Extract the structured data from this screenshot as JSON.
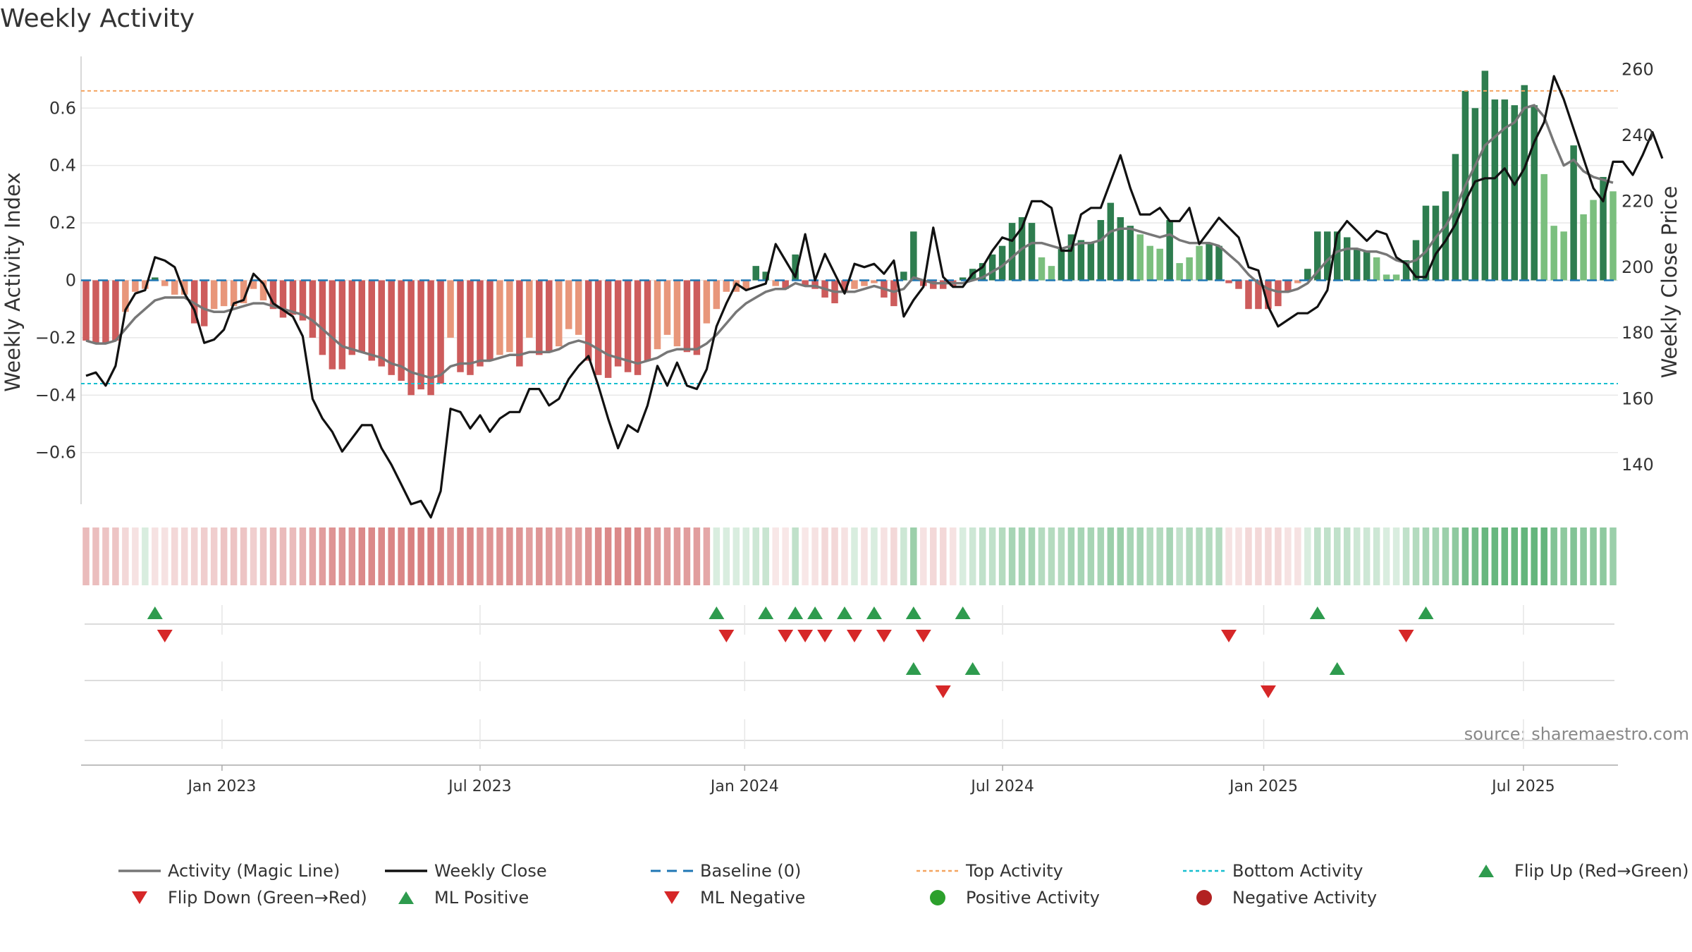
{
  "chart_data": {
    "type": "bar",
    "title": "Weekly Activity",
    "ylabel_left": "Weekly Activity Index",
    "ylabel_right": "Weekly Close Price",
    "source": "source: sharemaestro.com",
    "left_axis": {
      "ylim": [
        -0.78,
        0.78
      ],
      "ticks": [
        0.6,
        0.4,
        0.2,
        0,
        -0.2,
        -0.4,
        -0.6
      ],
      "tick_labels": [
        "0.6",
        "0.4",
        "0.2",
        "0",
        "−0.2",
        "−0.4",
        "−0.6"
      ]
    },
    "right_axis": {
      "ylim": [
        128,
        264
      ],
      "ticks": [
        260,
        240,
        220,
        200,
        180,
        160,
        140
      ],
      "tick_labels": [
        "260",
        "240",
        "220",
        "200",
        "180",
        "160",
        "140"
      ]
    },
    "reference_lines": {
      "baseline": 0,
      "top_activity": 0.66,
      "bottom_activity": -0.36
    },
    "x_ticks": [
      "Jan 2023",
      "Jul 2023",
      "Jan 2024",
      "Jul 2024",
      "Jan 2025",
      "Jul 2025"
    ],
    "activity": [
      -0.21,
      -0.22,
      -0.22,
      -0.21,
      -0.11,
      -0.04,
      -0.03,
      0.01,
      -0.02,
      -0.05,
      -0.05,
      -0.15,
      -0.16,
      -0.1,
      -0.09,
      -0.09,
      -0.08,
      -0.03,
      -0.07,
      -0.1,
      -0.13,
      -0.12,
      -0.14,
      -0.2,
      -0.26,
      -0.31,
      -0.31,
      -0.26,
      -0.25,
      -0.28,
      -0.3,
      -0.33,
      -0.35,
      -0.4,
      -0.38,
      -0.4,
      -0.36,
      -0.2,
      -0.32,
      -0.33,
      -0.3,
      -0.28,
      -0.26,
      -0.25,
      -0.3,
      -0.2,
      -0.26,
      -0.25,
      -0.23,
      -0.17,
      -0.19,
      -0.28,
      -0.33,
      -0.34,
      -0.3,
      -0.32,
      -0.33,
      -0.28,
      -0.24,
      -0.19,
      -0.23,
      -0.25,
      -0.26,
      -0.15,
      -0.1,
      -0.04,
      -0.04,
      -0.03,
      0.05,
      0.03,
      -0.02,
      -0.03,
      0.09,
      -0.02,
      -0.03,
      -0.06,
      -0.08,
      -0.04,
      -0.03,
      -0.02,
      -0.01,
      -0.06,
      -0.09,
      0.03,
      0.17,
      -0.02,
      -0.03,
      -0.03,
      -0.02,
      0.01,
      0.04,
      0.06,
      0.09,
      0.12,
      0.2,
      0.22,
      0.2,
      0.08,
      0.05,
      0.11,
      0.16,
      0.14,
      0.13,
      0.21,
      0.27,
      0.22,
      0.19,
      0.16,
      0.12,
      0.11,
      0.21,
      0.06,
      0.08,
      0.12,
      0.13,
      0.12,
      -0.01,
      -0.03,
      -0.1,
      -0.1,
      -0.1,
      -0.09,
      -0.04,
      -0.01,
      0.04,
      0.17,
      0.17,
      0.17,
      0.15,
      0.11,
      0.1,
      0.08,
      0.02,
      0.02,
      0.07,
      0.14,
      0.26,
      0.26,
      0.31,
      0.44,
      0.66,
      0.6,
      0.73,
      0.63,
      0.63,
      0.61,
      0.68,
      0.61,
      0.37,
      0.19,
      0.17,
      0.47,
      0.23,
      0.28,
      0.36,
      0.31
    ],
    "magic_line": [
      -0.21,
      -0.22,
      -0.22,
      -0.21,
      -0.17,
      -0.13,
      -0.1,
      -0.07,
      -0.06,
      -0.06,
      -0.06,
      -0.08,
      -0.1,
      -0.11,
      -0.11,
      -0.1,
      -0.09,
      -0.08,
      -0.08,
      -0.09,
      -0.1,
      -0.11,
      -0.12,
      -0.14,
      -0.17,
      -0.2,
      -0.23,
      -0.24,
      -0.25,
      -0.26,
      -0.27,
      -0.29,
      -0.3,
      -0.32,
      -0.33,
      -0.34,
      -0.33,
      -0.3,
      -0.29,
      -0.29,
      -0.28,
      -0.28,
      -0.27,
      -0.26,
      -0.26,
      -0.25,
      -0.25,
      -0.25,
      -0.24,
      -0.22,
      -0.21,
      -0.22,
      -0.24,
      -0.26,
      -0.27,
      -0.28,
      -0.29,
      -0.28,
      -0.27,
      -0.25,
      -0.24,
      -0.24,
      -0.24,
      -0.22,
      -0.19,
      -0.15,
      -0.11,
      -0.08,
      -0.06,
      -0.04,
      -0.03,
      -0.03,
      -0.01,
      -0.02,
      -0.02,
      -0.03,
      -0.04,
      -0.04,
      -0.04,
      -0.03,
      -0.02,
      -0.03,
      -0.04,
      -0.03,
      0.01,
      0.0,
      -0.01,
      -0.01,
      -0.01,
      -0.01,
      0.0,
      0.01,
      0.03,
      0.05,
      0.08,
      0.11,
      0.13,
      0.13,
      0.12,
      0.11,
      0.12,
      0.13,
      0.13,
      0.14,
      0.17,
      0.18,
      0.18,
      0.17,
      0.16,
      0.15,
      0.16,
      0.14,
      0.13,
      0.13,
      0.13,
      0.12,
      0.09,
      0.06,
      0.02,
      -0.01,
      -0.03,
      -0.04,
      -0.04,
      -0.03,
      -0.01,
      0.03,
      0.07,
      0.1,
      0.11,
      0.11,
      0.1,
      0.1,
      0.09,
      0.07,
      0.06,
      0.07,
      0.1,
      0.15,
      0.19,
      0.25,
      0.33,
      0.4,
      0.47,
      0.5,
      0.53,
      0.55,
      0.6,
      0.61,
      0.57,
      0.48,
      0.4,
      0.42,
      0.38,
      0.36,
      0.35,
      0.34
    ],
    "weekly_close": [
      167,
      168,
      164,
      170,
      187,
      192,
      193,
      203,
      202,
      200,
      192,
      187,
      177,
      178,
      181,
      189,
      190,
      198,
      195,
      189,
      187,
      185,
      179,
      160,
      154,
      150,
      144,
      148,
      152,
      152,
      145,
      140,
      134,
      128,
      129,
      124,
      132,
      157,
      156,
      151,
      155,
      150,
      154,
      156,
      156,
      163,
      163,
      158,
      160,
      166,
      170,
      173,
      164,
      154,
      145,
      152,
      150,
      158,
      170,
      164,
      171,
      164,
      163,
      169,
      182,
      189,
      195,
      193,
      194,
      195,
      207,
      202,
      197,
      210,
      196,
      204,
      198,
      192,
      201,
      200,
      201,
      198,
      202,
      185,
      190,
      194,
      212,
      197,
      194,
      194,
      198,
      200,
      205,
      209,
      208,
      212,
      220,
      220,
      218,
      205,
      205,
      216,
      218,
      218,
      226,
      234,
      224,
      216,
      216,
      218,
      214,
      214,
      218,
      207,
      211,
      215,
      212,
      209,
      200,
      199,
      188,
      182,
      184,
      186,
      186,
      188,
      193,
      210,
      214,
      211,
      208,
      211,
      210,
      203,
      201,
      197,
      197,
      204,
      208,
      213,
      220,
      226,
      227,
      227,
      230,
      225,
      230,
      238,
      244,
      258,
      251,
      242,
      233,
      224,
      220,
      232,
      232,
      228,
      234,
      241,
      233
    ],
    "timeline_strip_scores": [
      -0.35,
      -0.33,
      -0.3,
      -0.3,
      -0.2,
      -0.15,
      0.15,
      -0.15,
      -0.15,
      -0.2,
      -0.2,
      -0.22,
      -0.25,
      -0.25,
      -0.3,
      -0.3,
      -0.3,
      -0.25,
      -0.3,
      -0.35,
      -0.35,
      -0.35,
      -0.4,
      -0.45,
      -0.5,
      -0.55,
      -0.55,
      -0.55,
      -0.6,
      -0.6,
      -0.6,
      -0.62,
      -0.62,
      -0.65,
      -0.65,
      -0.65,
      -0.62,
      -0.55,
      -0.6,
      -0.6,
      -0.55,
      -0.55,
      -0.55,
      -0.55,
      -0.55,
      -0.5,
      -0.55,
      -0.52,
      -0.5,
      -0.48,
      -0.5,
      -0.55,
      -0.58,
      -0.6,
      -0.6,
      -0.6,
      -0.6,
      -0.55,
      -0.52,
      -0.5,
      -0.5,
      -0.5,
      -0.5,
      -0.45,
      0.15,
      0.15,
      0.15,
      0.15,
      0.2,
      0.22,
      -0.1,
      -0.1,
      0.25,
      -0.1,
      -0.15,
      -0.2,
      -0.2,
      -0.15,
      0.15,
      -0.15,
      0.15,
      -0.15,
      -0.2,
      0.2,
      0.4,
      -0.15,
      -0.2,
      -0.2,
      -0.15,
      0.15,
      0.2,
      0.25,
      0.25,
      0.3,
      0.35,
      0.35,
      0.35,
      0.3,
      0.3,
      0.3,
      0.35,
      0.35,
      0.35,
      0.35,
      0.4,
      0.4,
      0.35,
      0.35,
      0.3,
      0.3,
      0.35,
      0.25,
      0.3,
      0.3,
      0.3,
      0.3,
      -0.15,
      -0.15,
      -0.2,
      -0.2,
      -0.2,
      -0.2,
      -0.15,
      -0.15,
      0.15,
      0.25,
      0.25,
      0.25,
      0.25,
      0.2,
      0.2,
      0.2,
      0.15,
      0.15,
      0.25,
      0.3,
      0.35,
      0.35,
      0.4,
      0.45,
      0.55,
      0.55,
      0.6,
      0.6,
      0.6,
      0.6,
      0.62,
      0.62,
      0.62,
      0.5,
      0.45,
      0.5,
      0.45,
      0.45,
      0.45,
      0.4
    ],
    "flip_up_weeks": [
      7,
      64,
      69,
      72,
      74,
      77,
      80,
      84,
      89,
      125,
      136
    ],
    "flip_down_weeks": [
      8,
      65,
      71,
      73,
      75,
      78,
      81,
      85,
      116,
      134
    ],
    "ml_positive_weeks": [
      84,
      90,
      127
    ],
    "ml_negative_weeks": [
      87,
      120
    ],
    "legend": [
      {
        "label": "Activity (Magic Line)",
        "color": "#777777",
        "kind": "line"
      },
      {
        "label": "Weekly Close",
        "color": "#111111",
        "kind": "line"
      },
      {
        "label": "Baseline (0)",
        "color": "#1f77b4",
        "kind": "dashed"
      },
      {
        "label": "Top Activity",
        "color": "#f4a460",
        "kind": "dotted"
      },
      {
        "label": "Bottom Activity",
        "color": "#17becf",
        "kind": "dotted"
      },
      {
        "label": "Flip Up (Red→Green)",
        "color": "#2e9b4e",
        "kind": "triangle-up"
      },
      {
        "label": "Flip Down (Green→Red)",
        "color": "#d62728",
        "kind": "triangle-down"
      },
      {
        "label": "ML Positive",
        "color": "#2e9b4e",
        "kind": "triangle-up"
      },
      {
        "label": "ML Negative",
        "color": "#d62728",
        "kind": "triangle-down"
      },
      {
        "label": "Positive Activity",
        "color": "#2ca02c",
        "kind": "circle"
      },
      {
        "label": "Negative Activity",
        "color": "#b22222",
        "kind": "circle"
      }
    ],
    "colors": {
      "pos_strong": "#2e7d4f",
      "pos_light": "#7bbf7e",
      "neg_strong": "#cd5c5c",
      "neg_light": "#e8967a",
      "grid": "#e8e8e8",
      "axis": "#cccccc"
    }
  }
}
